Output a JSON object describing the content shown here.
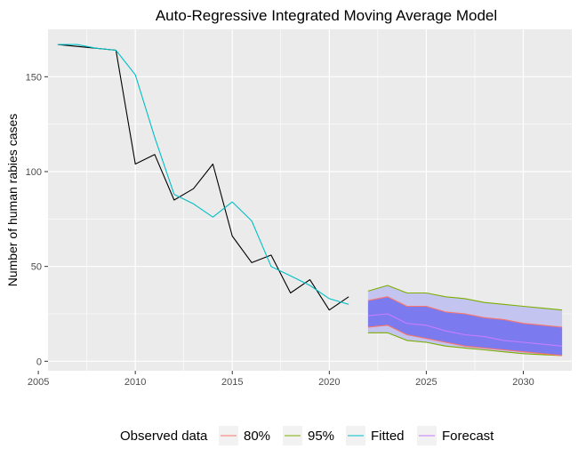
{
  "chart_data": {
    "type": "line",
    "title": "Auto-Regressive Integrated Moving Average Model",
    "xlabel": "",
    "ylabel": "Number of human rabies cases",
    "xlim": [
      2005.5,
      2032.5
    ],
    "ylim": [
      -5,
      175
    ],
    "x_ticks": [
      2005,
      2010,
      2015,
      2020,
      2025,
      2030
    ],
    "y_ticks": [
      0,
      50,
      100,
      150
    ],
    "grid": true,
    "legend_position": "bottom",
    "legend": {
      "title": "Observed data",
      "entries": [
        "80%",
        "95%",
        "Fitted",
        "Forecast"
      ]
    },
    "colors": {
      "observed": "#000000",
      "fitted": "#00BFC4",
      "forecast": "#C77CFF",
      "band80": "#7B7BEF",
      "band95": "#C4C4F0",
      "line80": "#F8766D",
      "line95": "#7CAE00",
      "panel": "#EBEBEB",
      "grid": "#FFFFFF"
    },
    "observed": {
      "x": [
        2006,
        2007,
        2008,
        2009,
        2010,
        2011,
        2012,
        2013,
        2014,
        2015,
        2016,
        2017,
        2018,
        2019,
        2020,
        2021
      ],
      "y": [
        167,
        166,
        165,
        164,
        104,
        109,
        85,
        91,
        104,
        66,
        52,
        56,
        36,
        43,
        27,
        34
      ]
    },
    "fitted": {
      "x": [
        2006,
        2007,
        2008,
        2009,
        2010,
        2011,
        2012,
        2013,
        2014,
        2015,
        2016,
        2017,
        2018,
        2019,
        2020,
        2021
      ],
      "y": [
        167,
        167,
        165,
        164,
        151,
        118,
        88,
        83,
        76,
        84,
        74,
        50,
        45,
        40,
        33,
        30
      ]
    },
    "forecast": {
      "x": [
        2022,
        2023,
        2024,
        2025,
        2026,
        2027,
        2028,
        2029,
        2030,
        2031,
        2032
      ],
      "mean": [
        24,
        25,
        20,
        19,
        16,
        14,
        13,
        11,
        10,
        9,
        8
      ],
      "lo80": [
        18,
        19,
        14,
        12,
        10,
        8,
        7,
        6,
        5,
        4,
        3
      ],
      "hi80": [
        32,
        34,
        29,
        29,
        26,
        25,
        23,
        22,
        20,
        19,
        18
      ],
      "lo95": [
        15,
        15,
        11,
        10,
        8,
        7,
        6,
        5,
        4,
        3.5,
        3
      ],
      "hi95": [
        37,
        40,
        36,
        36,
        34,
        33,
        31,
        30,
        29,
        28,
        27
      ]
    }
  }
}
